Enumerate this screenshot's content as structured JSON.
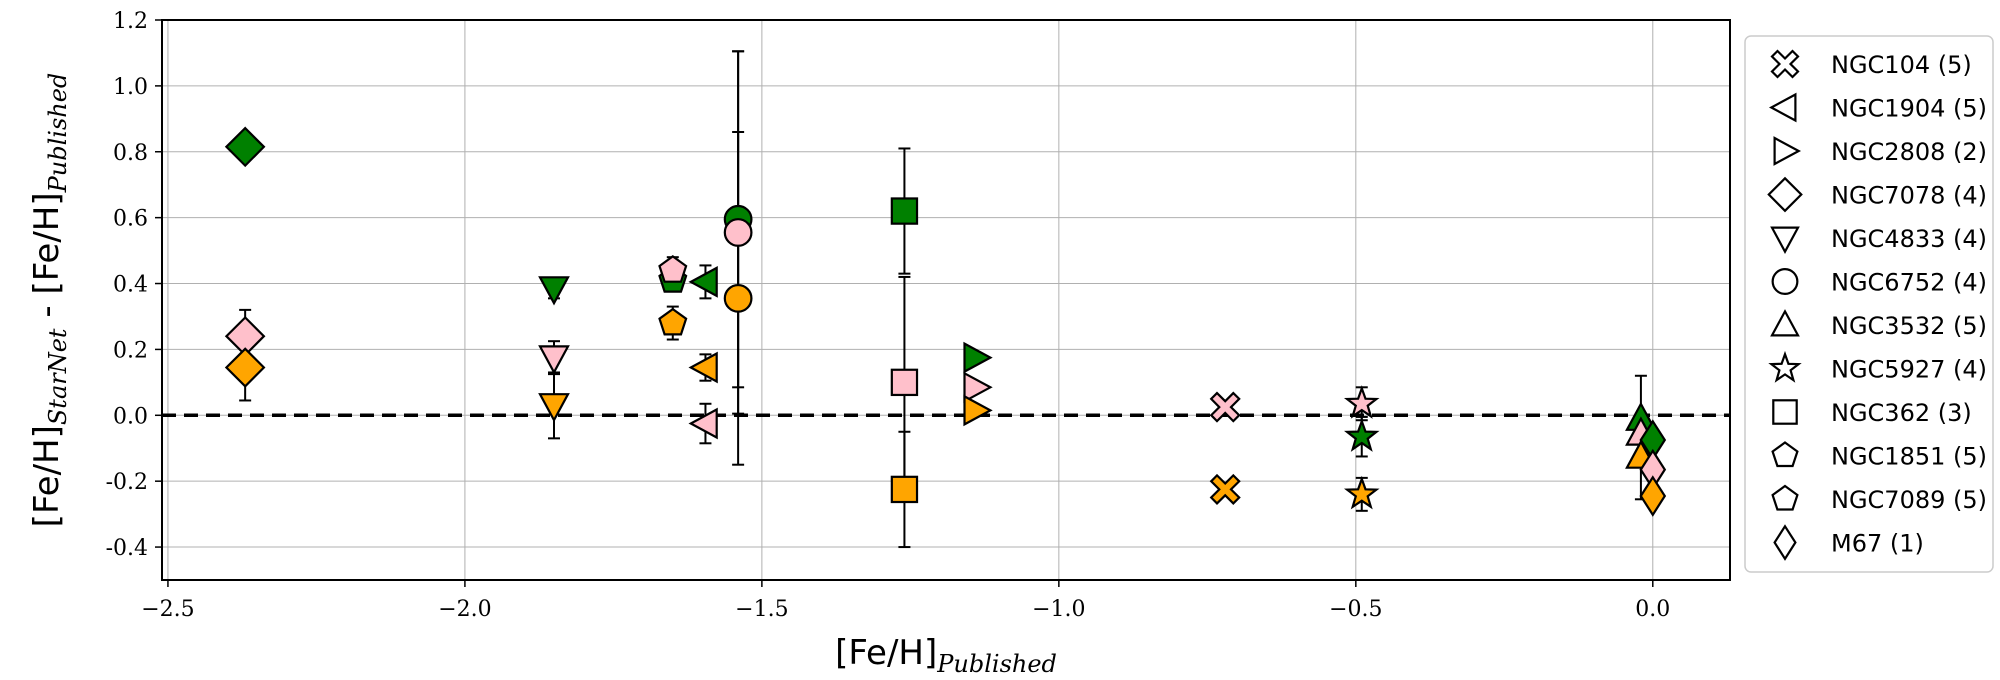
{
  "chart_data": {
    "type": "scatter",
    "xlabel_main": "[Fe/H]",
    "xlabel_sub": "Published",
    "ylabel_main_1": "[Fe/H]",
    "ylabel_sub_1": "StarNet",
    "ylabel_sep": " - ",
    "ylabel_main_2": "[Fe/H]",
    "ylabel_sub_2": "Published",
    "xlim": [
      -2.51,
      0.13
    ],
    "ylim": [
      -0.5,
      1.2
    ],
    "xticks": [
      -2.5,
      -2.0,
      -1.5,
      -1.0,
      -0.5,
      0.0
    ],
    "xtick_labels": [
      "−2.5",
      "−2.0",
      "−1.5",
      "−1.0",
      "−0.5",
      "0.0"
    ],
    "yticks": [
      -0.4,
      -0.2,
      0.0,
      0.2,
      0.4,
      0.6,
      0.8,
      1.0,
      1.2
    ],
    "ytick_labels": [
      "-0.4",
      "-0.2",
      "0.0",
      "0.2",
      "0.4",
      "0.6",
      "0.8",
      "1.0",
      "1.2"
    ],
    "grid": true,
    "reference_line": 0.0,
    "colors": {
      "green": "#008000",
      "orange": "#FFA500",
      "pink": "#FFC0CB"
    },
    "legend_position": "outside-right",
    "legend": [
      {
        "label": "NGC104 (5)",
        "marker": "X"
      },
      {
        "label": "NGC1904 (5)",
        "marker": "<"
      },
      {
        "label": "NGC2808 (2)",
        "marker": ">"
      },
      {
        "label": "NGC7078 (4)",
        "marker": "D"
      },
      {
        "label": "NGC4833 (4)",
        "marker": "v"
      },
      {
        "label": "NGC6752 (4)",
        "marker": "o"
      },
      {
        "label": "NGC3532 (5)",
        "marker": "^"
      },
      {
        "label": "NGC5927 (4)",
        "marker": "*"
      },
      {
        "label": "NGC362 (3)",
        "marker": "s"
      },
      {
        "label": "NGC1851 (5)",
        "marker": "p"
      },
      {
        "label": "NGC7089 (5)",
        "marker": "p"
      },
      {
        "label": "M67 (1)",
        "marker": "d"
      }
    ],
    "points": [
      {
        "cluster": "NGC7078",
        "marker": "D",
        "color": "green",
        "x": -2.37,
        "y": 0.815,
        "err": 0
      },
      {
        "cluster": "NGC7078",
        "marker": "D",
        "color": "pink",
        "x": -2.37,
        "y": 0.24,
        "err": 0.08
      },
      {
        "cluster": "NGC7078",
        "marker": "D",
        "color": "orange",
        "x": -2.37,
        "y": 0.145,
        "err": 0.1
      },
      {
        "cluster": "NGC4833",
        "marker": "v",
        "color": "green",
        "x": -1.85,
        "y": 0.385,
        "err": 0.03
      },
      {
        "cluster": "NGC4833",
        "marker": "v",
        "color": "pink",
        "x": -1.85,
        "y": 0.175,
        "err": 0.05
      },
      {
        "cluster": "NGC4833",
        "marker": "v",
        "color": "orange",
        "x": -1.85,
        "y": 0.03,
        "err": 0.1
      },
      {
        "cluster": "NGC7089",
        "marker": "p",
        "color": "green",
        "x": -1.65,
        "y": 0.41,
        "err": 0
      },
      {
        "cluster": "NGC7089",
        "marker": "p",
        "color": "pink",
        "x": -1.65,
        "y": 0.44,
        "err": 0.04
      },
      {
        "cluster": "NGC7089",
        "marker": "p",
        "color": "orange",
        "x": -1.65,
        "y": 0.28,
        "err": 0.05
      },
      {
        "cluster": "NGC1904",
        "marker": "<",
        "color": "green",
        "x": -1.595,
        "y": 0.405,
        "err": 0.05
      },
      {
        "cluster": "NGC1904",
        "marker": "<",
        "color": "orange",
        "x": -1.595,
        "y": 0.145,
        "err": 0.04
      },
      {
        "cluster": "NGC1904",
        "marker": "<",
        "color": "pink",
        "x": -1.595,
        "y": -0.025,
        "err": 0.06
      },
      {
        "cluster": "NGC6752",
        "marker": "o",
        "color": "green",
        "x": -1.54,
        "y": 0.595,
        "err": 0.51
      },
      {
        "cluster": "NGC6752",
        "marker": "o",
        "color": "pink",
        "x": -1.54,
        "y": 0.555,
        "err": 0.55
      },
      {
        "cluster": "NGC6752",
        "marker": "o",
        "color": "orange",
        "x": -1.54,
        "y": 0.355,
        "err": 0.505
      },
      {
        "cluster": "NGC362",
        "marker": "s",
        "color": "green",
        "x": -1.26,
        "y": 0.62,
        "err": 0.19
      },
      {
        "cluster": "NGC362",
        "marker": "s",
        "color": "pink",
        "x": -1.26,
        "y": 0.1,
        "err": 0.32
      },
      {
        "cluster": "NGC362",
        "marker": "s",
        "color": "orange",
        "x": -1.26,
        "y": -0.225,
        "err": 0.175
      },
      {
        "cluster": "NGC2808",
        "marker": ">",
        "color": "green",
        "x": -1.14,
        "y": 0.175,
        "err": 0
      },
      {
        "cluster": "NGC2808",
        "marker": ">",
        "color": "pink",
        "x": -1.14,
        "y": 0.085,
        "err": 0
      },
      {
        "cluster": "NGC2808",
        "marker": ">",
        "color": "orange",
        "x": -1.14,
        "y": 0.015,
        "err": 0
      },
      {
        "cluster": "NGC104",
        "marker": "X",
        "color": "pink",
        "x": -0.72,
        "y": 0.025,
        "err": 0
      },
      {
        "cluster": "NGC104",
        "marker": "X",
        "color": "orange",
        "x": -0.72,
        "y": -0.225,
        "err": 0
      },
      {
        "cluster": "NGC5927",
        "marker": "*",
        "color": "pink",
        "x": -0.49,
        "y": 0.035,
        "err": 0.05
      },
      {
        "cluster": "NGC5927",
        "marker": "*",
        "color": "green",
        "x": -0.49,
        "y": -0.065,
        "err": 0.06
      },
      {
        "cluster": "NGC5927",
        "marker": "*",
        "color": "orange",
        "x": -0.49,
        "y": -0.24,
        "err": 0.05
      },
      {
        "cluster": "NGC3532",
        "marker": "^",
        "color": "green",
        "x": -0.02,
        "y": -0.01,
        "err": 0.13
      },
      {
        "cluster": "NGC3532",
        "marker": "^",
        "color": "pink",
        "x": -0.02,
        "y": -0.055,
        "err": 0
      },
      {
        "cluster": "NGC3532",
        "marker": "^",
        "color": "orange",
        "x": -0.02,
        "y": -0.125,
        "err": 0.13
      },
      {
        "cluster": "M67",
        "marker": "d",
        "color": "green",
        "x": 0.0,
        "y": -0.075,
        "err": 0
      },
      {
        "cluster": "M67",
        "marker": "d",
        "color": "pink",
        "x": 0.0,
        "y": -0.165,
        "err": 0
      },
      {
        "cluster": "M67",
        "marker": "d",
        "color": "orange",
        "x": 0.0,
        "y": -0.245,
        "err": 0
      }
    ]
  }
}
